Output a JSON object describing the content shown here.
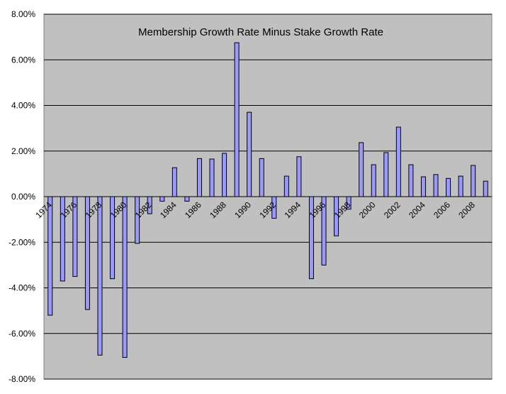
{
  "chart_data": {
    "type": "bar",
    "title": "Membership Growth Rate Minus Stake Growth Rate",
    "xlabel": "",
    "ylabel": "",
    "ylim": [
      -8.0,
      8.0
    ],
    "y_ticks": [
      "8.00%",
      "6.00%",
      "4.00%",
      "2.00%",
      "0.00%",
      "-2.00%",
      "-4.00%",
      "-6.00%",
      "-8.00%"
    ],
    "x_tick_labels": [
      "1974",
      "1976",
      "1978",
      "1980",
      "1982",
      "1984",
      "1986",
      "1988",
      "1990",
      "1992",
      "1994",
      "1996",
      "1998",
      "2000",
      "2002",
      "2004",
      "2006",
      "2008"
    ],
    "categories": [
      1974,
      1975,
      1976,
      1977,
      1978,
      1979,
      1980,
      1981,
      1982,
      1983,
      1984,
      1985,
      1986,
      1987,
      1988,
      1989,
      1990,
      1991,
      1992,
      1993,
      1994,
      1995,
      1996,
      1997,
      1998,
      1999,
      2000,
      2001,
      2002,
      2003,
      2004,
      2005,
      2006,
      2007,
      2008,
      2009
    ],
    "values": [
      -5.2,
      -3.7,
      -3.5,
      -4.95,
      -6.95,
      -3.6,
      -7.05,
      -2.05,
      -0.75,
      -0.2,
      1.27,
      -0.2,
      1.67,
      1.65,
      1.9,
      6.75,
      3.7,
      1.67,
      -0.95,
      0.9,
      1.75,
      -3.6,
      -3.0,
      -1.72,
      -0.55,
      2.37,
      1.4,
      1.93,
      3.05,
      1.4,
      0.87,
      0.97,
      0.8,
      0.9,
      1.37,
      0.68
    ],
    "grid": true,
    "colors": {
      "plot_background": "#c0c0c0",
      "bar_fill": "#9999ff",
      "bar_stroke": "#000000",
      "gridline": "#000000"
    }
  }
}
